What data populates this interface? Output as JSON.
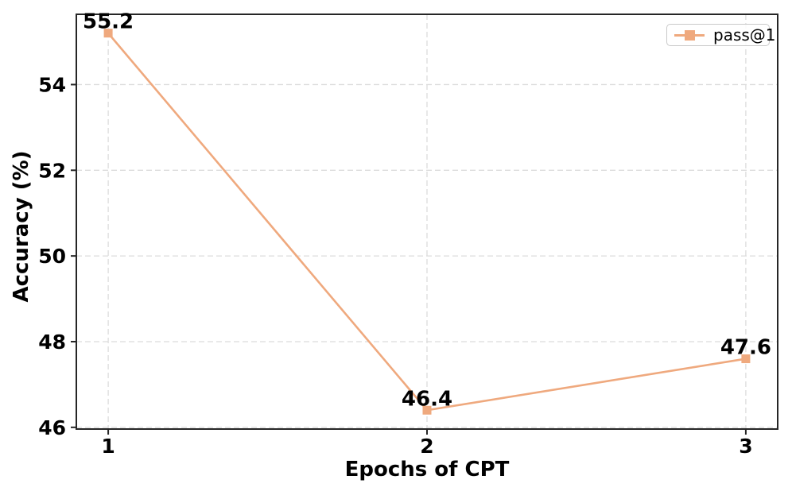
{
  "chart_data": {
    "type": "line",
    "title": "",
    "xlabel": "Epochs of CPT",
    "ylabel": "Accuracy (%)",
    "x": [
      1,
      2,
      3
    ],
    "series": [
      {
        "name": "pass@1",
        "values": [
          55.2,
          46.4,
          47.6
        ],
        "color": "#EFA97E",
        "marker": "square",
        "point_labels": [
          "55.2",
          "46.4",
          "47.6"
        ]
      }
    ],
    "xticks": {
      "values": [
        1,
        2,
        3
      ],
      "labels": [
        "1",
        "2",
        "3"
      ]
    },
    "yticks": {
      "values": [
        46,
        48,
        50,
        52,
        54
      ],
      "labels": [
        "46",
        "48",
        "50",
        "52",
        "54"
      ]
    },
    "xlim": [
      0.9,
      3.1
    ],
    "ylim": [
      45.96,
      55.64
    ],
    "grid": {
      "visible": true,
      "line_style": "dashed",
      "color": "#dcdcdc",
      "axis": "both"
    },
    "legend": {
      "position": "upper-right",
      "entries": [
        {
          "label": "pass@1",
          "color": "#EFA97E",
          "marker": "square"
        }
      ]
    },
    "colors": {
      "background": "#ffffff",
      "spine": "#262626",
      "text": "#000000"
    }
  }
}
